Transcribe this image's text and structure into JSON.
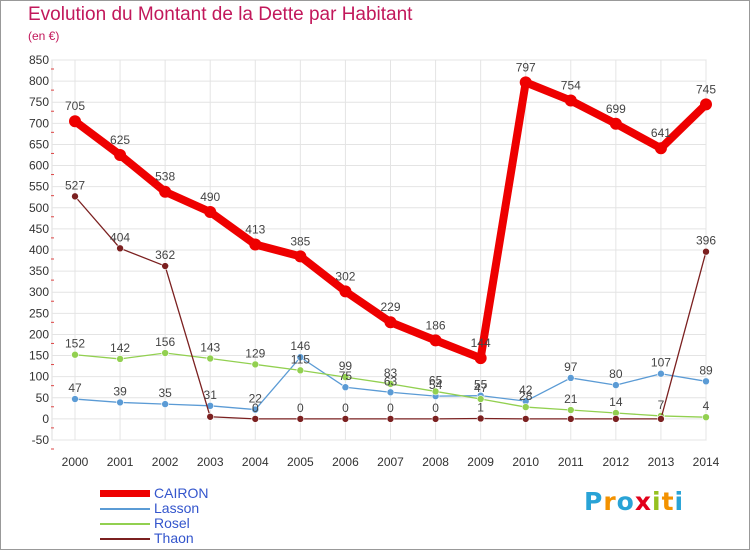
{
  "title": "Evolution du Montant de la Dette par Habitant",
  "unit_label": "(en €)",
  "logo": {
    "text": "Proxiti",
    "letters": [
      {
        "ch": "P",
        "color": "#29a3d6"
      },
      {
        "ch": "r",
        "color": "#f39200"
      },
      {
        "ch": "o",
        "color": "#29a3d6"
      },
      {
        "ch": "x",
        "color": "#e2001a"
      },
      {
        "ch": "i",
        "color": "#95c11f"
      },
      {
        "ch": "t",
        "color": "#f39200"
      },
      {
        "ch": "i",
        "color": "#29a3d6"
      }
    ]
  },
  "chart_data": {
    "type": "line",
    "x": [
      2000,
      2001,
      2002,
      2003,
      2004,
      2005,
      2006,
      2007,
      2008,
      2009,
      2010,
      2011,
      2012,
      2013,
      2014
    ],
    "ylim": [
      -50,
      850
    ],
    "yticks": [
      -50,
      0,
      50,
      100,
      150,
      200,
      250,
      300,
      350,
      400,
      450,
      500,
      550,
      600,
      650,
      700,
      750,
      800,
      850
    ],
    "grid": true,
    "legend_position": "bottom-left",
    "series": [
      {
        "name": "CAIRON",
        "color": "#ee0000",
        "width": 8,
        "marker": 6,
        "values": [
          705,
          625,
          538,
          490,
          413,
          385,
          302,
          229,
          186,
          144,
          797,
          754,
          699,
          641,
          745
        ],
        "labels": [
          "705",
          "625",
          "538",
          "490",
          "413",
          "385",
          "302",
          "229",
          "186",
          "144",
          "797",
          "754",
          "699",
          "641",
          "745"
        ]
      },
      {
        "name": "Lasson",
        "color": "#5b9bd5",
        "width": 1.3,
        "marker": 3.5,
        "values": [
          47,
          39,
          35,
          31,
          22,
          146,
          75,
          63,
          54,
          55,
          42,
          97,
          80,
          107,
          89
        ],
        "labels": [
          "47",
          "39",
          "35",
          "31",
          "22",
          "146",
          "75",
          "63",
          "54",
          "55",
          "42",
          "97",
          "80",
          "107",
          "89"
        ]
      },
      {
        "name": "Rosel",
        "color": "#92d050",
        "width": 1.3,
        "marker": 3.5,
        "values": [
          152,
          142,
          156,
          143,
          129,
          115,
          99,
          83,
          65,
          47,
          28,
          21,
          14,
          7,
          4
        ],
        "labels": [
          "152",
          "142",
          "156",
          "143",
          "129",
          "115",
          "99",
          "83",
          "65",
          "47",
          "28",
          "21",
          "14",
          "7",
          "4"
        ]
      },
      {
        "name": "Thaon",
        "color": "#7b2020",
        "width": 1.3,
        "marker": 3.5,
        "values": [
          527,
          404,
          362,
          5,
          0,
          0,
          0,
          0,
          0,
          1,
          0,
          0,
          0,
          0,
          396
        ],
        "labels": [
          "527",
          "404",
          "362",
          "",
          "0",
          "0",
          "0",
          "0",
          "0",
          "1",
          "",
          "",
          "",
          "",
          "396"
        ]
      }
    ]
  }
}
